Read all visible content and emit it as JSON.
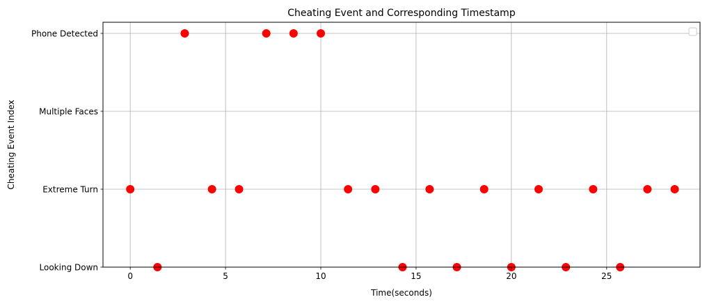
{
  "chart_data": {
    "type": "scatter",
    "title": "Cheating Event and Corresponding Timestamp",
    "xlabel": "Time(seconds)",
    "ylabel": "Cheating Event Index",
    "xlim": [
      -1.43,
      29.9
    ],
    "x_ticks": [
      0,
      5,
      10,
      15,
      20,
      25
    ],
    "y_categories": [
      "Looking Down",
      "Extreme Turn",
      "Multiple Faces",
      "Phone Detected"
    ],
    "grid": true,
    "legend": "top-right (empty)",
    "marker_color": "#ff0000",
    "points": [
      {
        "x": 0.0,
        "y": "Extreme Turn"
      },
      {
        "x": 1.43,
        "y": "Looking Down"
      },
      {
        "x": 2.86,
        "y": "Phone Detected"
      },
      {
        "x": 4.29,
        "y": "Extreme Turn"
      },
      {
        "x": 5.71,
        "y": "Extreme Turn"
      },
      {
        "x": 7.14,
        "y": "Phone Detected"
      },
      {
        "x": 8.57,
        "y": "Phone Detected"
      },
      {
        "x": 10.0,
        "y": "Phone Detected"
      },
      {
        "x": 11.43,
        "y": "Extreme Turn"
      },
      {
        "x": 12.86,
        "y": "Extreme Turn"
      },
      {
        "x": 14.29,
        "y": "Looking Down"
      },
      {
        "x": 15.71,
        "y": "Extreme Turn"
      },
      {
        "x": 17.14,
        "y": "Looking Down"
      },
      {
        "x": 18.57,
        "y": "Extreme Turn"
      },
      {
        "x": 20.0,
        "y": "Looking Down"
      },
      {
        "x": 21.43,
        "y": "Extreme Turn"
      },
      {
        "x": 22.86,
        "y": "Looking Down"
      },
      {
        "x": 24.29,
        "y": "Extreme Turn"
      },
      {
        "x": 25.71,
        "y": "Looking Down"
      },
      {
        "x": 27.14,
        "y": "Extreme Turn"
      },
      {
        "x": 28.57,
        "y": "Extreme Turn"
      }
    ]
  }
}
